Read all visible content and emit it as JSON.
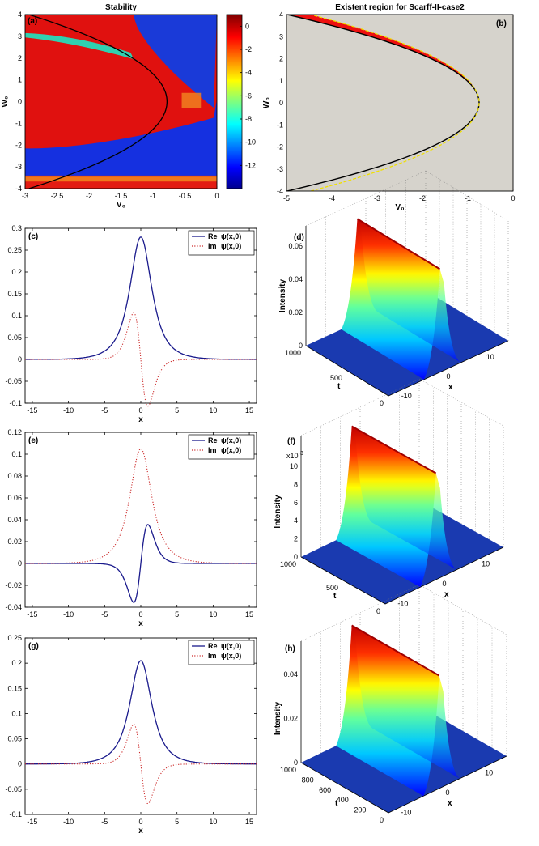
{
  "chart_data": [
    {
      "id": "a",
      "type": "heatmap",
      "panel_label": "(a)",
      "title": "Stability",
      "xlabel": "V₀",
      "ylabel": "W₀",
      "xlim": [
        -3,
        0
      ],
      "ylim": [
        -4,
        4
      ],
      "xticks": [
        -3,
        -2.5,
        -2,
        -1.5,
        -1,
        -0.5,
        0
      ],
      "yticks": [
        -4,
        -3,
        -2,
        -1,
        0,
        1,
        2,
        3,
        4
      ],
      "colorbar": {
        "range": [
          -14,
          1
        ],
        "ticks": [
          0,
          -2,
          -4,
          -6,
          -8,
          -10,
          -12
        ]
      },
      "boundary_curve": "black"
    },
    {
      "id": "b",
      "type": "area",
      "panel_label": "(b)",
      "title": "Existent region for Scarff-II-case2",
      "xlabel": "V₀",
      "ylabel": "W₀",
      "xlim": [
        -5,
        0
      ],
      "ylim": [
        -4,
        4
      ],
      "xticks": [
        -5,
        -4,
        -3,
        -2,
        -1,
        0
      ],
      "yticks": [
        -4,
        -3,
        -2,
        -1,
        0,
        1,
        2,
        3,
        4
      ],
      "vertex_v0": -0.75
    },
    {
      "id": "c",
      "type": "line",
      "panel_label": "(c)",
      "xlabel": "x",
      "xlim": [
        -16,
        16
      ],
      "ylim": [
        -0.1,
        0.3
      ],
      "xticks": [
        -15,
        -10,
        -5,
        0,
        5,
        10,
        15
      ],
      "yticks": [
        -0.1,
        -0.05,
        0,
        0.05,
        0.1,
        0.15,
        0.2,
        0.25,
        0.3
      ],
      "series": [
        {
          "name": "Re ψ(x,0)",
          "legend": "Re",
          "style": "solid",
          "color": "#1a1a8c",
          "peak": 0.28,
          "shape": "even"
        },
        {
          "name": "Im ψ(x,0)",
          "legend": "Im",
          "style": "dotted",
          "color": "#cc2a2a",
          "peak": 0.087,
          "shape": "odd"
        }
      ]
    },
    {
      "id": "d",
      "type": "surface",
      "panel_label": "(d)",
      "zlabel": "Intensity",
      "tlabel": "t",
      "xlabel": "x",
      "zticks": [
        "0",
        "0.02",
        "0.04",
        "0.06"
      ],
      "tticks": [
        "1000",
        "500",
        "0"
      ],
      "xticks": [
        "-10",
        "0",
        "10"
      ]
    },
    {
      "id": "e",
      "type": "line",
      "panel_label": "(e)",
      "xlabel": "x",
      "xlim": [
        -16,
        16
      ],
      "ylim": [
        -0.04,
        0.12
      ],
      "xticks": [
        -15,
        -10,
        -5,
        0,
        5,
        10,
        15
      ],
      "yticks": [
        -0.04,
        -0.02,
        0,
        0.02,
        0.04,
        0.06,
        0.08,
        0.1,
        0.12
      ],
      "series": [
        {
          "name": "Re ψ(x,0)",
          "legend": "Re",
          "style": "solid",
          "color": "#1a1a8c",
          "peak": 0.029,
          "shape": "odd_neg"
        },
        {
          "name": "Im ψ(x,0)",
          "legend": "Im",
          "style": "dotted",
          "color": "#cc2a2a",
          "peak": 0.105,
          "shape": "even"
        }
      ]
    },
    {
      "id": "f",
      "type": "surface",
      "panel_label": "(f)",
      "zlabel": "Intensity",
      "tlabel": "t",
      "xlabel": "x",
      "exponent": "x10",
      "zticks": [
        "0",
        "2",
        "4",
        "6",
        "8",
        "10"
      ],
      "tticks": [
        "1000",
        "500",
        "0"
      ],
      "xticks": [
        "-10",
        "0",
        "10"
      ]
    },
    {
      "id": "g",
      "type": "line",
      "panel_label": "(g)",
      "xlabel": "x",
      "xlim": [
        -16,
        16
      ],
      "ylim": [
        -0.1,
        0.25
      ],
      "xticks": [
        -15,
        -10,
        -5,
        0,
        5,
        10,
        15
      ],
      "yticks": [
        -0.1,
        -0.05,
        0,
        0.05,
        0.1,
        0.15,
        0.2,
        0.25
      ],
      "series": [
        {
          "name": "Re ψ(x,0)",
          "legend": "Re",
          "style": "solid",
          "color": "#1a1a8c",
          "peak": 0.205,
          "shape": "even"
        },
        {
          "name": "Im ψ(x,0)",
          "legend": "Im",
          "style": "dotted",
          "color": "#cc2a2a",
          "peak": 0.064,
          "shape": "odd"
        }
      ]
    },
    {
      "id": "h",
      "type": "surface",
      "panel_label": "(h)",
      "zlabel": "Intensity",
      "tlabel": "t",
      "xlabel": "x",
      "zticks": [
        "0",
        "0.02",
        "0.04"
      ],
      "tticks": [
        "1000",
        "800",
        "600",
        "400",
        "200",
        "0"
      ],
      "xticks": [
        "-10",
        "0",
        "10"
      ]
    }
  ],
  "legend_symbol": "ψ(x,0)",
  "exponent_power": "-3"
}
